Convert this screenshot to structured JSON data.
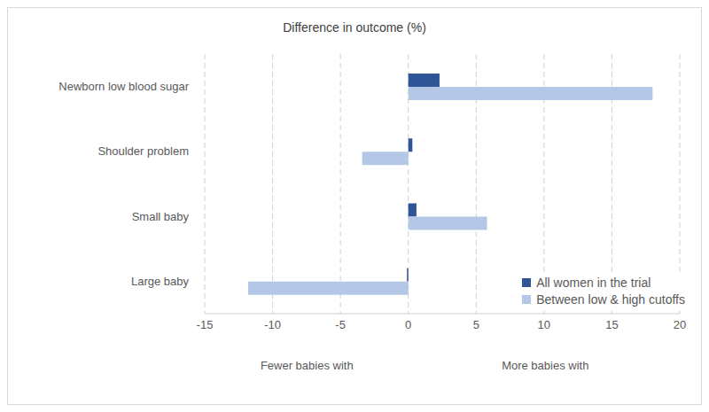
{
  "chart_data": {
    "type": "bar",
    "orientation": "horizontal",
    "title": "Difference in outcome (%)",
    "categories": [
      "Newborn low blood sugar",
      "Shoulder problem",
      "Small baby",
      "Large baby"
    ],
    "series": [
      {
        "name": "All women in the trial",
        "color": "#2f5597",
        "values": [
          2.3,
          0.3,
          0.6,
          -0.1
        ]
      },
      {
        "name": "Between low & high cutoffs",
        "color": "#b4c7e7",
        "values": [
          18.0,
          -3.4,
          5.8,
          -11.8
        ]
      }
    ],
    "xlim": [
      -15,
      20
    ],
    "xticks": [
      -15,
      -10,
      -5,
      0,
      5,
      10,
      15,
      20
    ],
    "grid": true,
    "legend": "lower right",
    "annotations": [
      "Fewer babies with",
      "More babies with"
    ]
  }
}
